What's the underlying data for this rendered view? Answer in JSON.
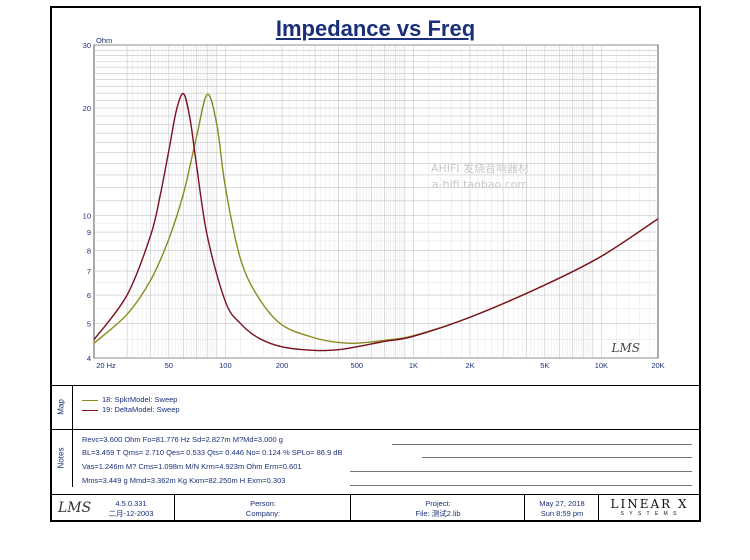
{
  "chart_data": {
    "type": "line",
    "title": "Impedance vs Freq",
    "ylabel": "Ohm",
    "x_scale": "log",
    "y_scale": "log",
    "xlim": [
      20,
      20000
    ],
    "ylim": [
      4,
      30
    ],
    "x_ticks": [
      "20 Hz",
      "50",
      "100",
      "200",
      "500",
      "1K",
      "2K",
      "5K",
      "10K",
      "20K"
    ],
    "y_ticks": [
      "4",
      "5",
      "6",
      "7",
      "8",
      "9",
      "10",
      "20",
      "30"
    ],
    "series": [
      {
        "name": "18: SpkrModel: Sweep",
        "color": "#8a8a1e",
        "x": [
          20,
          30,
          40,
          50,
          60,
          70,
          80,
          90,
          100,
          120,
          150,
          200,
          300,
          400,
          500,
          700,
          1000,
          2000,
          5000,
          10000,
          20000
        ],
        "y": [
          4.4,
          5.3,
          6.6,
          8.6,
          11.6,
          16.5,
          21.8,
          18.0,
          12.0,
          7.6,
          5.9,
          4.95,
          4.55,
          4.42,
          4.4,
          4.48,
          4.62,
          5.2,
          6.4,
          7.7,
          9.8
        ]
      },
      {
        "name": "19: DeltaModel: Sweep",
        "color": "#7a1020",
        "x": [
          20,
          30,
          40,
          45,
          50,
          55,
          60,
          65,
          70,
          80,
          100,
          120,
          150,
          200,
          300,
          400,
          500,
          700,
          1000,
          2000,
          5000,
          10000,
          20000
        ],
        "y": [
          4.5,
          6.0,
          8.8,
          11.4,
          15.2,
          19.8,
          21.9,
          18.5,
          14.0,
          8.8,
          5.75,
          5.0,
          4.55,
          4.3,
          4.2,
          4.22,
          4.3,
          4.45,
          4.6,
          5.2,
          6.4,
          7.7,
          9.8
        ]
      }
    ],
    "grid": true,
    "watermark": [
      "AHIFI 发烧音响器材",
      "a-hifi.taobao.com"
    ],
    "lms_mark": "LMS"
  },
  "panels": {
    "map_label": "Map",
    "legend": [
      "18: SpkrModel: Sweep",
      "19: DeltaModel: Sweep"
    ],
    "notes_label": "Notes",
    "notes": [
      "Revc=3.600 Ohm  Fo=81.776 Hz  Sd=2.827m M?Md=3.000 g",
      "BL=3.459 T\u000f  Qms= 2.710  Qes= 0.533  Qts= 0.446  No= 0.124 %  SPLo= 86.9 dB",
      "Vas=1.246m M? Cms=1.098m M/N  Krm=4.923m Ohm  Erm=0.601",
      "Mms=3.449 g  Mmd=3.362m Kg  Kxm=82.250m H  Exm=0.303"
    ]
  },
  "footer": {
    "logo": "LMS",
    "version": "4.5.0.331",
    "date_chinese": "二月-12-2003",
    "person": "Person:",
    "company": "Company:",
    "project": "Project:",
    "file": "File: 测试2.lib",
    "date": "May 27, 2018",
    "time": "Sun  8:59 pm",
    "brand": "LINEAR X",
    "brand_sub": "S Y S T E M S"
  }
}
